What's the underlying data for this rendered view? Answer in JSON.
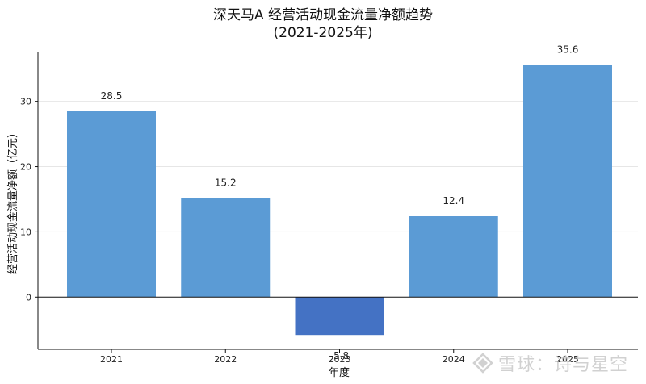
{
  "chart_data": {
    "type": "bar",
    "title": "深天马A 经营活动现金流量净额趋势",
    "subtitle": "(2021-2025年)",
    "xlabel": "年度",
    "ylabel": "经营活动现金流量净额（亿元）",
    "categories": [
      "2021",
      "2022",
      "2023",
      "2024",
      "2025"
    ],
    "values": [
      28.5,
      15.2,
      -5.8,
      12.4,
      35.6
    ],
    "value_labels": [
      "28.5",
      "15.2",
      "-5.8",
      "12.4",
      "35.6"
    ],
    "ylim": [
      -8,
      37.5
    ],
    "yticks": [
      0,
      10,
      20,
      30
    ],
    "grid": true,
    "colors": {
      "positive": "#5b9bd5",
      "negative": "#4472c4",
      "zero_line": "#111111"
    }
  },
  "watermark": {
    "text": "雪球：诗与星空"
  }
}
